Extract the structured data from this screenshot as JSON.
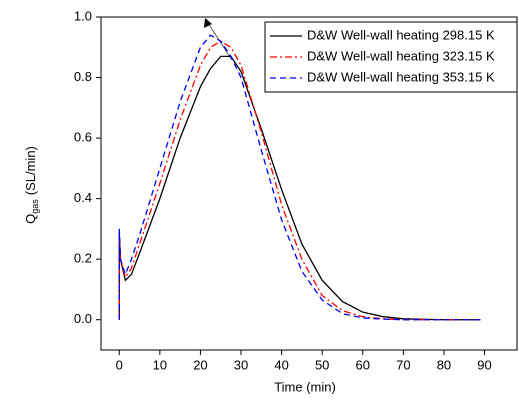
{
  "chart_data": {
    "type": "line",
    "x_label": "Time (min)",
    "y_label": {
      "main": "Q",
      "sub": "gas",
      "unit": "(SL/min)"
    },
    "x": [
      0,
      0,
      0.3,
      1.5,
      3,
      5,
      10,
      15,
      20,
      22.5,
      25,
      27.5,
      30,
      35,
      40,
      45,
      50,
      55,
      60,
      65,
      70,
      80,
      89
    ],
    "series": [
      {
        "name": "D&W Well-wall heating 298.15 K",
        "color": "#000000",
        "dash": "solid",
        "values": [
          0,
          0.29,
          0.2,
          0.13,
          0.15,
          0.22,
          0.4,
          0.6,
          0.77,
          0.83,
          0.87,
          0.87,
          0.82,
          0.63,
          0.43,
          0.25,
          0.13,
          0.06,
          0.025,
          0.01,
          0.003,
          0,
          0
        ]
      },
      {
        "name": "D&W Well-wall heating 323.15 K",
        "color": "#ff0000",
        "dash": "dashdot",
        "values": [
          0,
          0.28,
          0.2,
          0.14,
          0.17,
          0.25,
          0.45,
          0.66,
          0.84,
          0.9,
          0.92,
          0.9,
          0.84,
          0.62,
          0.38,
          0.2,
          0.08,
          0.03,
          0.01,
          0.003,
          0,
          0,
          0
        ]
      },
      {
        "name": "D&W Well-wall heating 353.15 K",
        "color": "#0000ff",
        "dash": "dashed",
        "values": [
          0,
          0.3,
          0.2,
          0.15,
          0.2,
          0.28,
          0.5,
          0.72,
          0.9,
          0.94,
          0.92,
          0.87,
          0.8,
          0.56,
          0.33,
          0.16,
          0.065,
          0.02,
          0.006,
          0.002,
          0,
          0,
          0
        ]
      }
    ],
    "xlim": [
      -4.5,
      98
    ],
    "ylim": [
      -0.1,
      1.0
    ],
    "xticks": [
      0,
      10,
      20,
      30,
      40,
      50,
      60,
      70,
      80,
      90
    ],
    "yticks": [
      {
        "value": 0,
        "label": "0.0"
      },
      0.2,
      0.4,
      0.6,
      0.8,
      {
        "value": 1,
        "label": "1.0"
      }
    ],
    "legend": "upper right"
  }
}
